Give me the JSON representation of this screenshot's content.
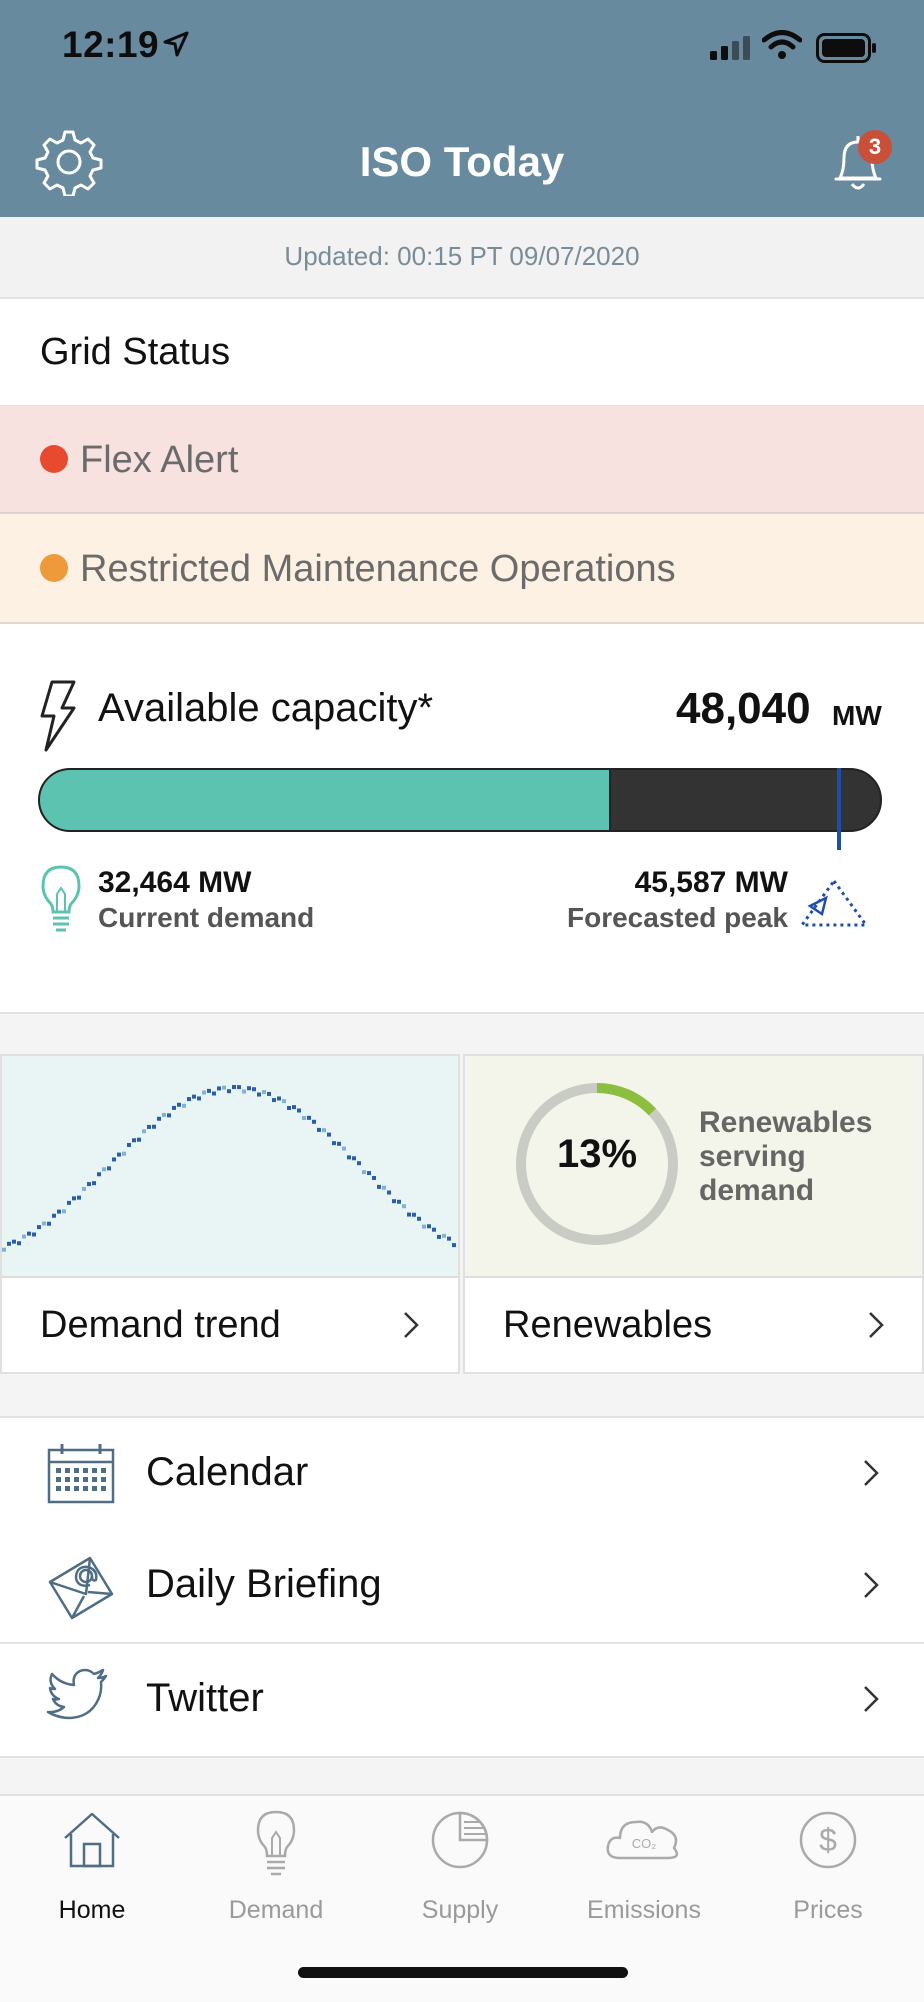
{
  "status_bar": {
    "time": "12:19"
  },
  "header": {
    "title": "ISO Today",
    "notification_count": "3"
  },
  "updated": "Updated: 00:15 PT 09/07/2020",
  "grid_status": {
    "heading": "Grid Status",
    "alerts": [
      {
        "label": "Flex Alert",
        "color": "#e84a30"
      },
      {
        "label": "Restricted Maintenance Operations",
        "color": "#ef9a3a"
      }
    ]
  },
  "capacity": {
    "label": "Available capacity*",
    "value": "48,040",
    "unit": "MW",
    "current_demand_value": "32,464 MW",
    "current_demand_label": "Current demand",
    "forecast_peak_value": "45,587 MW",
    "forecast_peak_label": "Forecasted peak",
    "demand_fraction": 0.676,
    "peak_fraction": 0.949
  },
  "tiles": {
    "demand": {
      "label": "Demand trend"
    },
    "renewables": {
      "label": "Renewables",
      "percent": "13%",
      "fraction": 0.13,
      "description": "Renewables serving demand"
    }
  },
  "links": [
    {
      "label": "Calendar",
      "icon": "calendar-icon"
    },
    {
      "label": "Daily Briefing",
      "icon": "envelope-icon"
    },
    {
      "label": "Twitter",
      "icon": "twitter-bird-icon"
    }
  ],
  "tabs": [
    {
      "label": "Home",
      "icon": "home-icon",
      "active": true
    },
    {
      "label": "Demand",
      "icon": "lightbulb-icon",
      "active": false
    },
    {
      "label": "Supply",
      "icon": "pie-icon",
      "active": false
    },
    {
      "label": "Emissions",
      "icon": "co2-cloud-icon",
      "active": false
    },
    {
      "label": "Prices",
      "icon": "dollar-icon",
      "active": false
    }
  ],
  "colors": {
    "header": "#688a9f",
    "capacity_fill": "#5cc3b1",
    "peak_marker": "#1e4fa8",
    "renewables_ring": "#8cbf3f"
  }
}
